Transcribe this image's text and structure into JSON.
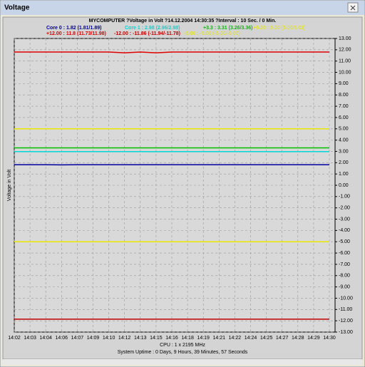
{
  "window": {
    "title": "Voltage"
  },
  "chart_data": {
    "type": "line",
    "title": "MYCOMPUTER ?Voltage in Volt ?14.12.2004 14:30:35 ?Interval : 10 Sec. / 0 Min.",
    "y_label": "Voltage in Volt",
    "annotations": [
      "CPU : 1 x 2195 MHz",
      "System Uptime : 0 Days, 9 Hours, 39 Minutes, 57 Seconds"
    ],
    "grid": true,
    "categories": [
      "14:02",
      "14:03",
      "14:04",
      "14:06",
      "14:07",
      "14:09",
      "14:10",
      "14:12",
      "14:13",
      "14:15",
      "14:16",
      "14:18",
      "14:19",
      "14:21",
      "14:22",
      "14:24",
      "14:25",
      "14:27",
      "14:28",
      "14:29",
      "14:30"
    ],
    "ylim": [
      -13,
      13
    ],
    "yticks": [
      {
        "value": 13,
        "label": "13.00"
      },
      {
        "value": 12,
        "label": "12.00"
      },
      {
        "value": 11,
        "label": "11.00"
      },
      {
        "value": 10,
        "label": "10.00"
      },
      {
        "value": 9,
        "label": "9.00"
      },
      {
        "value": 8,
        "label": "8.00"
      },
      {
        "value": 7,
        "label": "7.00"
      },
      {
        "value": 6,
        "label": "6.00"
      },
      {
        "value": 5,
        "label": "5.00"
      },
      {
        "value": 4,
        "label": "4.00"
      },
      {
        "value": 3,
        "label": "3.00"
      },
      {
        "value": 2,
        "label": "2.00"
      },
      {
        "value": 1,
        "label": "1.00"
      },
      {
        "value": 0,
        "label": "0.00"
      },
      {
        "value": -1,
        "label": "-1.00"
      },
      {
        "value": -2,
        "label": "-2.00"
      },
      {
        "value": -3,
        "label": "-3.00"
      },
      {
        "value": -4,
        "label": "-4.00"
      },
      {
        "value": -5,
        "label": "-5.00"
      },
      {
        "value": -6,
        "label": "-6.00"
      },
      {
        "value": -7,
        "label": "-7.00"
      },
      {
        "value": -8,
        "label": "-8.00"
      },
      {
        "value": -9,
        "label": "-9.00"
      },
      {
        "value": -10,
        "label": "-10.00"
      },
      {
        "value": -11,
        "label": "-11.00"
      },
      {
        "value": -12,
        "label": "-12.00"
      },
      {
        "value": -13,
        "label": "-13.00"
      }
    ],
    "series": [
      {
        "name": "Core 0 : 1.82 (1.81/1.89)",
        "color": "#0000a0",
        "values": [
          1.82,
          1.82,
          1.82,
          1.81,
          1.82,
          1.82,
          1.82,
          1.82,
          1.82,
          1.82,
          1.82,
          1.82,
          1.82,
          1.82,
          1.82,
          1.82,
          1.82,
          1.82,
          1.82,
          1.82,
          1.82
        ]
      },
      {
        "name": "Core 1 : 2.98 (2.96/2.98)",
        "color": "#00d8d8",
        "values": [
          2.98,
          2.98,
          2.97,
          2.98,
          2.98,
          2.98,
          2.98,
          2.98,
          2.98,
          2.97,
          2.98,
          2.98,
          2.98,
          2.98,
          2.98,
          2.98,
          2.98,
          2.97,
          2.98,
          2.98,
          2.98
        ]
      },
      {
        "name": "+3.3 : 3.31 (3.26/3.36)",
        "color": "#00c000",
        "values": [
          3.31,
          3.31,
          3.31,
          3.31,
          3.31,
          3.31,
          3.31,
          3.31,
          3.31,
          3.31,
          3.31,
          3.31,
          3.31,
          3.31,
          3.31,
          3.31,
          3.31,
          3.31,
          3.31,
          3.31,
          3.31
        ]
      },
      {
        "name": "+5.00 : 5.00 (5.00/5.03)",
        "color": "#e8e800",
        "values": [
          5,
          5,
          5,
          5,
          5,
          5,
          5,
          5,
          5,
          5,
          5,
          5,
          5,
          5,
          5,
          5,
          5,
          5,
          5,
          5,
          5
        ]
      },
      {
        "name": "+12.00 : 11.8 (11.73/11.98)",
        "color": "#e00000",
        "values": [
          11.8,
          11.8,
          11.8,
          11.8,
          11.8,
          11.8,
          11.8,
          11.73,
          11.8,
          11.73,
          11.8,
          11.8,
          11.8,
          11.8,
          11.8,
          11.8,
          11.8,
          11.8,
          11.8,
          11.8,
          11.8
        ]
      },
      {
        "name": "-12.00 : -11.86 (-11.94/-11.78)",
        "color": "#c00000",
        "values": [
          -11.86,
          -11.86,
          -11.86,
          -11.86,
          -11.86,
          -11.86,
          -11.86,
          -11.86,
          -11.86,
          -11.86,
          -11.86,
          -11.86,
          -11.86,
          -11.86,
          -11.86,
          -11.86,
          -11.86,
          -11.86,
          -11.86,
          -11.86,
          -11.86
        ]
      },
      {
        "name": "-5.00 : -5.00 (-5.00/-5.00)",
        "color": "#e8e800",
        "values": [
          -5,
          -5,
          -5,
          -5,
          -5,
          -5,
          -5,
          -5,
          -5,
          -5,
          -5,
          -5,
          -5,
          -5,
          -5,
          -5,
          -5,
          -5,
          -5,
          -5,
          -5
        ]
      }
    ]
  }
}
